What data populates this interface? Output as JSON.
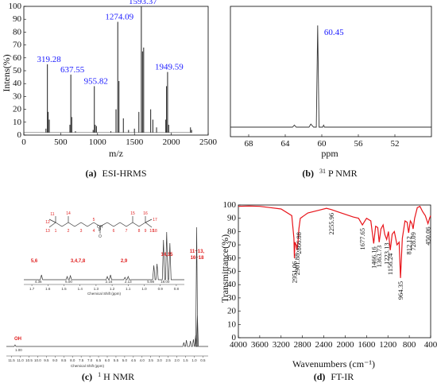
{
  "panels": {
    "a": {
      "letter": "(a)",
      "caption": "ESI-HRMS",
      "chart_data": {
        "type": "line",
        "xlabel": "m/z",
        "ylabel": "Intens(%)",
        "xlim": [
          0,
          2500
        ],
        "ylim": [
          0,
          100
        ],
        "x_ticks": [
          0,
          500,
          1000,
          1500,
          2000,
          2500
        ],
        "y_ticks": [
          0,
          10,
          20,
          30,
          40,
          50,
          60,
          70,
          80,
          90,
          100
        ],
        "peaks": [
          {
            "x": 300,
            "y": 5
          },
          {
            "x": 319.28,
            "y": 55
          },
          {
            "x": 330,
            "y": 18
          },
          {
            "x": 345,
            "y": 12
          },
          {
            "x": 625,
            "y": 8
          },
          {
            "x": 637.55,
            "y": 47
          },
          {
            "x": 650,
            "y": 14
          },
          {
            "x": 700,
            "y": 3
          },
          {
            "x": 940,
            "y": 4
          },
          {
            "x": 955.82,
            "y": 38
          },
          {
            "x": 968,
            "y": 8
          },
          {
            "x": 985,
            "y": 7
          },
          {
            "x": 1180,
            "y": 3
          },
          {
            "x": 1250,
            "y": 20
          },
          {
            "x": 1274.09,
            "y": 88
          },
          {
            "x": 1290,
            "y": 42
          },
          {
            "x": 1350,
            "y": 13
          },
          {
            "x": 1420,
            "y": 4
          },
          {
            "x": 1500,
            "y": 5
          },
          {
            "x": 1560,
            "y": 18
          },
          {
            "x": 1593.37,
            "y": 100
          },
          {
            "x": 1610,
            "y": 65
          },
          {
            "x": 1625,
            "y": 68
          },
          {
            "x": 1720,
            "y": 20
          },
          {
            "x": 1750,
            "y": 12
          },
          {
            "x": 1800,
            "y": 6
          },
          {
            "x": 1925,
            "y": 12
          },
          {
            "x": 1935,
            "y": 38
          },
          {
            "x": 1949.59,
            "y": 49
          },
          {
            "x": 1965,
            "y": 8
          },
          {
            "x": 2260,
            "y": 6
          },
          {
            "x": 2275,
            "y": 4
          }
        ],
        "annotations": [
          {
            "x": 319.28,
            "y": 55,
            "text": "319.28"
          },
          {
            "x": 637.55,
            "y": 47,
            "text": "637.55"
          },
          {
            "x": 955.82,
            "y": 38,
            "text": "955.82"
          },
          {
            "x": 1274.09,
            "y": 88,
            "text": "1274.09"
          },
          {
            "x": 1593.37,
            "y": 100,
            "text": "1593.37"
          },
          {
            "x": 1949.59,
            "y": 49,
            "text": "1949.59"
          }
        ]
      }
    },
    "b": {
      "letter": "(b)",
      "caption_sup": "31",
      "caption": "P NMR",
      "chart_data": {
        "type": "line",
        "xlabel": "ppm",
        "xlim": [
          70,
          48
        ],
        "x_ticks": [
          68,
          64,
          60,
          56,
          52
        ],
        "peaks": [
          {
            "x": 63.0,
            "y": 0.02
          },
          {
            "x": 61.2,
            "y": 0.03
          },
          {
            "x": 60.45,
            "y": 1.0
          },
          {
            "x": 59.8,
            "y": 0.02
          }
        ],
        "annotations": [
          {
            "x": 60.45,
            "y": 1.0,
            "text": "60.45"
          }
        ]
      }
    },
    "c": {
      "letter": "(c)",
      "caption_sup": "1",
      "caption": "H NMR",
      "oh_label": "OH",
      "oh_integral": "1.00",
      "axis_title": "Chemical Shift (ppm)",
      "inset_axis_title": "Chemical Shift (ppm)",
      "x_ticks": [
        "11.5",
        "11.0",
        "10.5",
        "10.0",
        "9.5",
        "9.0",
        "8.5",
        "8.0",
        "7.5",
        "7.0",
        "6.5",
        "6.0",
        "5.5",
        "5.0",
        "4.5",
        "4.0",
        "3.5",
        "3.0",
        "2.5",
        "2.0",
        "1.5",
        "1.0",
        "0.5"
      ],
      "inset_x_ticks": [
        "1.7",
        "1.6",
        "1.5",
        "1.4",
        "1.3",
        "1.2",
        "1.1",
        "1.0",
        "0.9",
        "0.8"
      ],
      "inset_integrals": [
        "4.36",
        "6.00",
        "2.16",
        "2.13",
        "5.98",
        "18.00"
      ],
      "peak_groups": [
        {
          "label": "5,6",
          "ppm": 1.62
        },
        {
          "label": "3,4,7,8",
          "ppm": 1.48
        },
        {
          "label": "2,9",
          "ppm": 1.22
        },
        {
          "label": "14,15",
          "ppm": 0.93
        },
        {
          "label": "11~13,",
          "ppm": 0.85
        },
        {
          "label": "16~18",
          "ppm": 0.85
        }
      ],
      "structure": {
        "oh": "OH",
        "p": "P",
        "o": "O",
        "atom_numbers": [
          "11",
          "12",
          "13",
          "1",
          "2",
          "3",
          "14",
          "4",
          "5",
          "6",
          "15",
          "7",
          "8",
          "9",
          "10",
          "16",
          "17",
          "18"
        ]
      }
    },
    "d": {
      "letter": "(d)",
      "caption": "FT-IR",
      "chart_data": {
        "type": "line",
        "xlabel": "Wavenumbers (cm⁻¹)",
        "ylabel": "Transmittance(%)",
        "xlim": [
          4000,
          400
        ],
        "ylim": [
          0,
          100
        ],
        "x_ticks": [
          4000,
          3600,
          3200,
          2800,
          2400,
          2000,
          1600,
          1200,
          800,
          400
        ],
        "y_ticks": [
          0,
          10,
          20,
          30,
          40,
          50,
          60,
          70,
          80,
          90,
          100
        ],
        "color": "#e8141a",
        "series": [
          {
            "x": [
              4000,
              3800,
              3600,
              3400,
              3200,
              3000,
              2960,
              2951.06,
              2940,
              2920,
              2901.88,
              2880,
              2866.88,
              2840,
              2700,
              2500,
              2350,
              2255.96,
              2150,
              2000,
              1850,
              1750,
              1677.65,
              1600,
              1520,
              1466.16,
              1430,
              1390,
              1363.73,
              1330,
              1290,
              1260,
              1223.13,
              1190,
              1156.24,
              1120,
              1080,
              1030,
              990,
              964.35,
              930,
              880,
              840,
              812.12,
              780,
              750,
              728.09,
              700,
              650,
              600,
              550,
              500,
              450.06,
              420,
              400
            ],
            "y": [
              99,
              99.2,
              99,
              98,
              97,
              92,
              75,
              60,
              72,
              70,
              66,
              74,
              82,
              90,
              94,
              96,
              97.5,
              96.5,
              95,
              93,
              91,
              90,
              85,
              90,
              88,
              71,
              84,
              83,
              72,
              82,
              85,
              78,
              74,
              80,
              66,
              78,
              80,
              70,
              72,
              45,
              75,
              88,
              87,
              79,
              88,
              86,
              82,
              90,
              98,
              99,
              95,
              92,
              86,
              90,
              92
            ]
          }
        ],
        "annotations": [
          {
            "x": 2951.06,
            "text": "2951.06"
          },
          {
            "x": 2901.88,
            "text": "2901.88"
          },
          {
            "x": 2866.88,
            "text": "2866.88"
          },
          {
            "x": 2255.96,
            "text": "2255.96"
          },
          {
            "x": 1677.65,
            "text": "1677.65"
          },
          {
            "x": 1466.16,
            "text": "1466.16"
          },
          {
            "x": 1363.73,
            "text": "1363.73"
          },
          {
            "x": 1223.13,
            "text": "1223.13"
          },
          {
            "x": 1156.24,
            "text": "1156.24"
          },
          {
            "x": 964.35,
            "text": "964.35"
          },
          {
            "x": 812.12,
            "text": "812.12"
          },
          {
            "x": 728.09,
            "text": "728.09"
          },
          {
            "x": 450.06,
            "text": "450.06"
          }
        ]
      }
    }
  }
}
